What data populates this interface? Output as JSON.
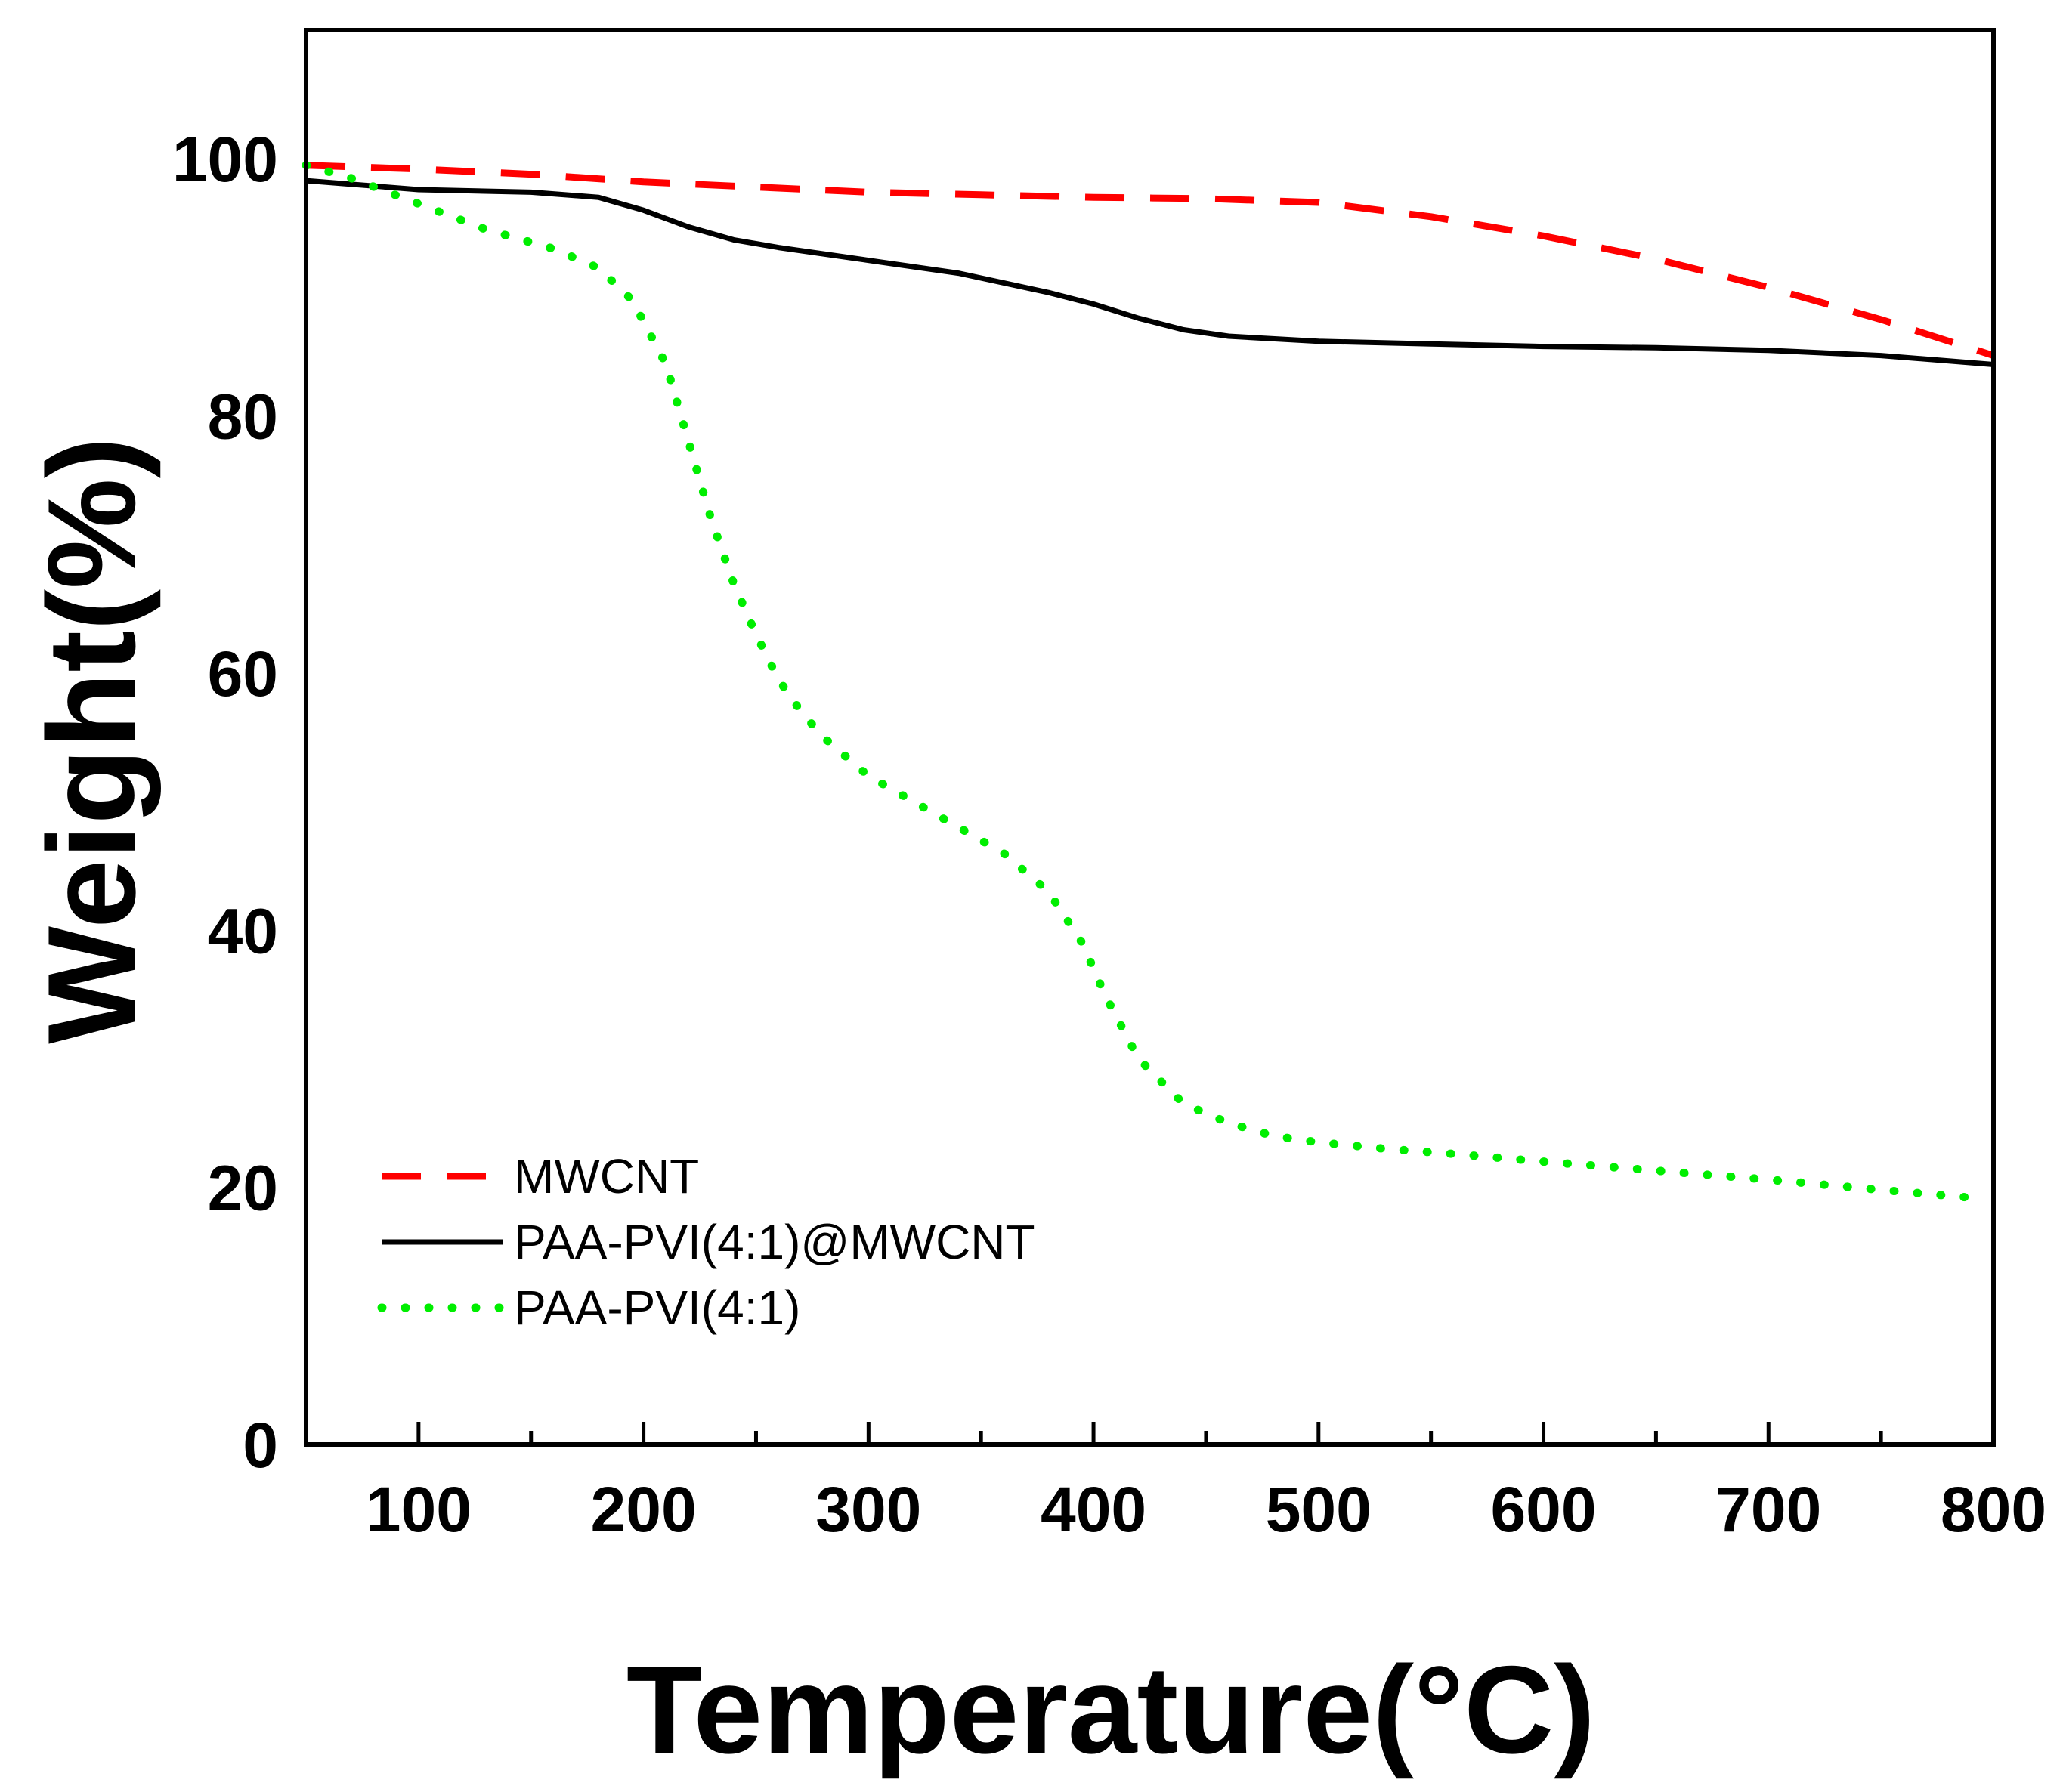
{
  "chart_data": {
    "type": "line",
    "title": "",
    "xlabel": "Temperature(°C)",
    "ylabel": "Weight(%)",
    "xlim": [
      50,
      800
    ],
    "ylim": [
      0,
      110
    ],
    "xticks": [
      100,
      200,
      300,
      400,
      500,
      600,
      700,
      800
    ],
    "xminor": [
      150,
      250,
      350,
      450,
      550,
      650,
      750
    ],
    "yticks": [
      0,
      20,
      40,
      60,
      80,
      100
    ],
    "grid": false,
    "legend_position": "bottom-left",
    "series": [
      {
        "name": "MWCNT",
        "color": "#ff0000",
        "style": "dashed",
        "x": [
          50,
          100,
          150,
          200,
          250,
          300,
          350,
          400,
          450,
          500,
          550,
          600,
          650,
          700,
          750,
          800
        ],
        "y": [
          99.5,
          99.2,
          98.8,
          98.2,
          97.8,
          97.4,
          97.2,
          97.0,
          96.9,
          96.6,
          95.5,
          94.0,
          92.2,
          90.0,
          87.5,
          84.7
        ]
      },
      {
        "name": "PAA-PVI(4:1)@MWCNT",
        "color": "#000000",
        "style": "solid",
        "x": [
          50,
          100,
          150,
          180,
          200,
          220,
          240,
          260,
          300,
          340,
          380,
          400,
          420,
          440,
          460,
          500,
          550,
          600,
          650,
          700,
          750,
          800
        ],
        "y": [
          98.3,
          97.6,
          97.4,
          97.0,
          96.0,
          94.7,
          93.7,
          93.1,
          92.1,
          91.1,
          89.6,
          88.7,
          87.6,
          86.7,
          86.2,
          85.8,
          85.6,
          85.4,
          85.3,
          85.1,
          84.7,
          84.0
        ],
        "line_width": 7
      },
      {
        "name": "PAA-PVI(4:1)",
        "color": "#00ee00",
        "style": "dotted",
        "x": [
          50,
          70,
          100,
          130,
          160,
          180,
          195,
          210,
          220,
          230,
          240,
          250,
          260,
          270,
          280,
          300,
          320,
          340,
          360,
          380,
          395,
          405,
          420,
          440,
          460,
          480,
          500,
          530,
          560,
          600,
          650,
          700,
          750,
          790
        ],
        "y": [
          99.5,
          98.5,
          96.5,
          94.5,
          93.0,
          91.5,
          89.0,
          84.0,
          78.0,
          72.0,
          67.0,
          63.0,
          59.5,
          57.0,
          55.0,
          52.0,
          50.0,
          48.0,
          46.0,
          43.0,
          39.0,
          35.0,
          30.0,
          26.5,
          25.0,
          24.0,
          23.5,
          23.0,
          22.6,
          22.0,
          21.3,
          20.6,
          19.8,
          19.2
        ],
        "line_width": 11
      }
    ]
  }
}
